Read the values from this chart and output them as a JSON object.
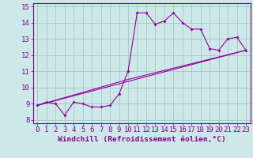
{
  "title": "",
  "xlabel": "Windchill (Refroidissement éolien,°C)",
  "ylabel": "",
  "xlim": [
    -0.5,
    23.5
  ],
  "ylim": [
    7.8,
    15.2
  ],
  "yticks": [
    8,
    9,
    10,
    11,
    12,
    13,
    14,
    15
  ],
  "xticks": [
    0,
    1,
    2,
    3,
    4,
    5,
    6,
    7,
    8,
    9,
    10,
    11,
    12,
    13,
    14,
    15,
    16,
    17,
    18,
    19,
    20,
    21,
    22,
    23
  ],
  "background_color": "#cce8e8",
  "grid_color": "#aacccc",
  "line_color": "#990099",
  "line1_x": [
    0,
    1,
    2,
    3,
    4,
    5,
    6,
    7,
    8,
    9,
    10,
    11,
    12,
    13,
    14,
    15,
    16,
    17,
    18,
    19,
    20,
    21,
    22,
    23
  ],
  "line1_y": [
    8.9,
    9.1,
    9.0,
    8.3,
    9.1,
    9.0,
    8.8,
    8.8,
    8.9,
    9.6,
    11.0,
    14.6,
    14.6,
    13.9,
    14.1,
    14.6,
    14.0,
    13.6,
    13.6,
    12.4,
    12.3,
    13.0,
    13.1,
    12.3
  ],
  "line2_x": [
    0,
    23
  ],
  "line2_y": [
    8.9,
    12.3
  ],
  "line3_x": [
    0,
    10,
    23
  ],
  "line3_y": [
    8.9,
    10.5,
    12.3
  ],
  "tick_fontsize": 6.5,
  "xlabel_fontsize": 6.8,
  "label_color": "#880088"
}
